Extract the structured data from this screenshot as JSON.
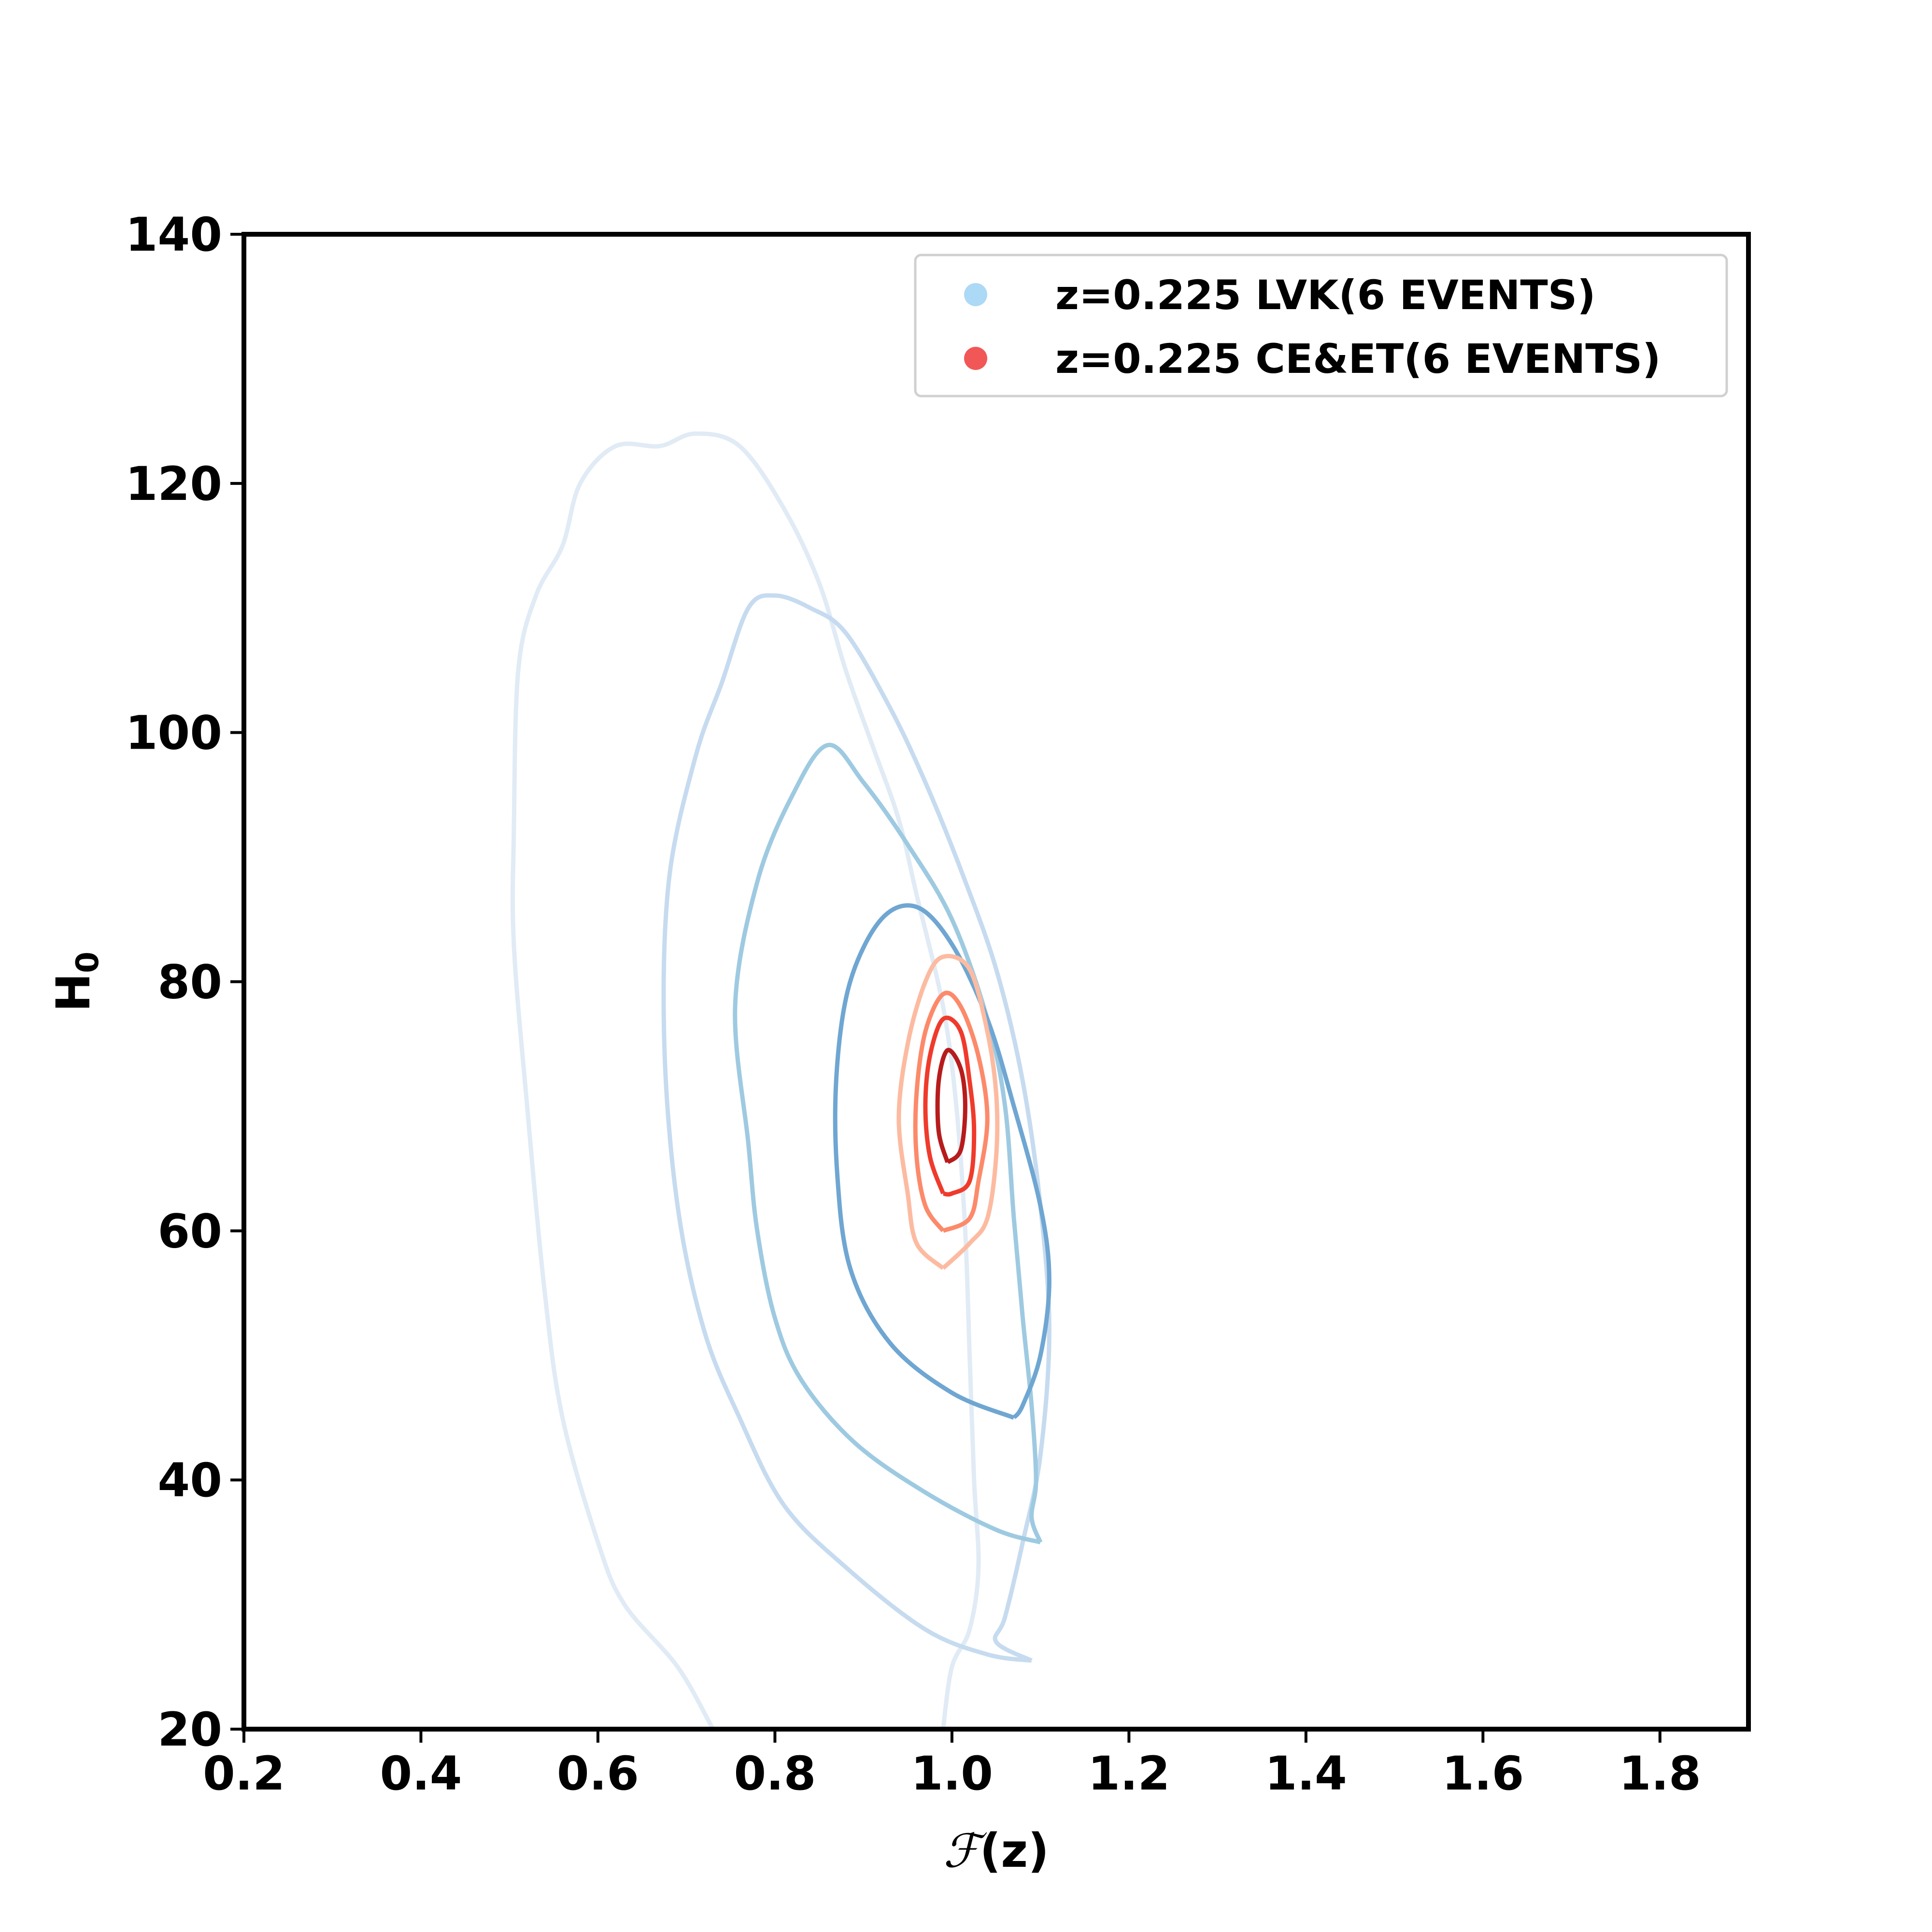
{
  "chart_data": {
    "type": "contour",
    "xlabel_prefix": "ℱ",
    "xlabel_suffix": "(z)",
    "ylabel_main": "H",
    "ylabel_sub": "0",
    "xlim": [
      0.2,
      1.9
    ],
    "ylim": [
      20,
      140
    ],
    "x_ticks": [
      0.2,
      0.4,
      0.6,
      0.8,
      1.0,
      1.2,
      1.4,
      1.6,
      1.8
    ],
    "x_tick_labels": [
      "0.2",
      "0.4",
      "0.6",
      "0.8",
      "1.0",
      "1.2",
      "1.4",
      "1.6",
      "1.8"
    ],
    "y_ticks": [
      20,
      40,
      60,
      80,
      100,
      120,
      140
    ],
    "y_tick_labels": [
      "20",
      "40",
      "60",
      "80",
      "100",
      "120",
      "140"
    ],
    "legend_position": "top-right",
    "legend": [
      {
        "label": "z=0.225 LVK(6 EVENTS)",
        "color": "#9dd2f3"
      },
      {
        "label": "z=0.225 CE&ET(6 EVENTS)",
        "color": "#f03a3a"
      }
    ],
    "series": [
      {
        "name": "z=0.225 LVK(6 EVENTS)",
        "contours": [
          {
            "color": "#e0ebf5",
            "points": [
              [
                0.73,
                20
              ],
              [
                0.69,
                25
              ],
              [
                0.63,
                30
              ],
              [
                0.6,
                35
              ],
              [
                0.56,
                45
              ],
              [
                0.54,
                55
              ],
              [
                0.52,
                70
              ],
              [
                0.505,
                83
              ],
              [
                0.505,
                92
              ],
              [
                0.51,
                105
              ],
              [
                0.53,
                111
              ],
              [
                0.56,
                115
              ],
              [
                0.58,
                120
              ],
              [
                0.62,
                123
              ],
              [
                0.67,
                123
              ],
              [
                0.71,
                124
              ],
              [
                0.76,
                123
              ],
              [
                0.81,
                118
              ],
              [
                0.85,
                112
              ],
              [
                0.88,
                105
              ],
              [
                0.91,
                99
              ],
              [
                0.94,
                93
              ],
              [
                0.96,
                87
              ],
              [
                0.99,
                78
              ],
              [
                1.005,
                70
              ],
              [
                1.015,
                60
              ],
              [
                1.02,
                50
              ],
              [
                1.025,
                40
              ],
              [
                1.03,
                33
              ],
              [
                1.02,
                28
              ],
              [
                1.0,
                25
              ],
              [
                0.99,
                20
              ]
            ]
          },
          {
            "color": "#c6dbef",
            "points": [
              [
                1.09,
                25.5
              ],
              [
                1.04,
                26
              ],
              [
                0.97,
                28
              ],
              [
                0.88,
                33
              ],
              [
                0.81,
                38
              ],
              [
                0.76,
                45
              ],
              [
                0.72,
                52
              ],
              [
                0.69,
                62
              ],
              [
                0.675,
                75
              ],
              [
                0.68,
                88
              ],
              [
                0.71,
                98
              ],
              [
                0.74,
                104
              ],
              [
                0.77,
                110
              ],
              [
                0.8,
                111
              ],
              [
                0.84,
                110
              ],
              [
                0.88,
                108
              ],
              [
                0.93,
                102
              ],
              [
                0.97,
                96
              ],
              [
                1.01,
                89
              ],
              [
                1.05,
                81
              ],
              [
                1.08,
                72
              ],
              [
                1.1,
                62
              ],
              [
                1.11,
                52
              ],
              [
                1.1,
                42
              ],
              [
                1.08,
                35
              ],
              [
                1.06,
                29
              ],
              [
                1.05,
                27
              ],
              [
                1.09,
                25.5
              ]
            ]
          },
          {
            "color": "#9ecae1",
            "points": [
              [
                1.1,
                35
              ],
              [
                1.05,
                36
              ],
              [
                0.97,
                39
              ],
              [
                0.89,
                43
              ],
              [
                0.83,
                48
              ],
              [
                0.8,
                53
              ],
              [
                0.78,
                60
              ],
              [
                0.77,
                67
              ],
              [
                0.755,
                78
              ],
              [
                0.78,
                88
              ],
              [
                0.82,
                95
              ],
              [
                0.86,
                99
              ],
              [
                0.9,
                96
              ],
              [
                0.95,
                91
              ],
              [
                1.0,
                85
              ],
              [
                1.04,
                77
              ],
              [
                1.06,
                70
              ],
              [
                1.07,
                61
              ],
              [
                1.08,
                53
              ],
              [
                1.09,
                46
              ],
              [
                1.095,
                40
              ],
              [
                1.09,
                37
              ],
              [
                1.1,
                35
              ]
            ]
          },
          {
            "color": "#6fa6d2",
            "points": [
              [
                1.07,
                45
              ],
              [
                1.0,
                47
              ],
              [
                0.93,
                51
              ],
              [
                0.885,
                57
              ],
              [
                0.87,
                65
              ],
              [
                0.87,
                73
              ],
              [
                0.885,
                80
              ],
              [
                0.92,
                85
              ],
              [
                0.96,
                86
              ],
              [
                1.0,
                83
              ],
              [
                1.04,
                77
              ],
              [
                1.07,
                70
              ],
              [
                1.1,
                62
              ],
              [
                1.11,
                56
              ],
              [
                1.1,
                50
              ],
              [
                1.08,
                46
              ],
              [
                1.07,
                45
              ]
            ]
          }
        ]
      },
      {
        "name": "z=0.225 CE&ET(6 EVENTS)",
        "contours": [
          {
            "color": "#fcbba1",
            "points": [
              [
                0.99,
                57
              ],
              [
                0.96,
                59
              ],
              [
                0.95,
                63
              ],
              [
                0.94,
                69
              ],
              [
                0.95,
                75
              ],
              [
                0.97,
                80
              ],
              [
                0.99,
                82
              ],
              [
                1.02,
                81
              ],
              [
                1.04,
                76
              ],
              [
                1.05,
                71
              ],
              [
                1.05,
                66
              ],
              [
                1.04,
                61
              ],
              [
                1.02,
                59
              ],
              [
                0.99,
                57
              ]
            ]
          },
          {
            "color": "#fc8a6a",
            "points": [
              [
                0.99,
                60
              ],
              [
                0.97,
                62
              ],
              [
                0.96,
                66
              ],
              [
                0.96,
                71
              ],
              [
                0.97,
                76
              ],
              [
                0.99,
                79
              ],
              [
                1.01,
                78
              ],
              [
                1.03,
                74
              ],
              [
                1.04,
                69
              ],
              [
                1.03,
                64
              ],
              [
                1.02,
                61
              ],
              [
                0.99,
                60
              ]
            ]
          },
          {
            "color": "#ef3b2c",
            "points": [
              [
                0.99,
                63
              ],
              [
                0.975,
                66
              ],
              [
                0.97,
                70
              ],
              [
                0.975,
                74
              ],
              [
                0.99,
                77
              ],
              [
                1.01,
                76
              ],
              [
                1.02,
                72
              ],
              [
                1.025,
                68
              ],
              [
                1.02,
                64
              ],
              [
                1.0,
                63
              ],
              [
                0.99,
                63
              ]
            ]
          },
          {
            "color": "#b71c1c",
            "points": [
              [
                0.995,
                65.5
              ],
              [
                0.985,
                68
              ],
              [
                0.985,
                72
              ],
              [
                0.995,
                74.5
              ],
              [
                1.01,
                73
              ],
              [
                1.015,
                70
              ],
              [
                1.01,
                66.5
              ],
              [
                0.995,
                65.5
              ]
            ]
          }
        ]
      }
    ]
  }
}
